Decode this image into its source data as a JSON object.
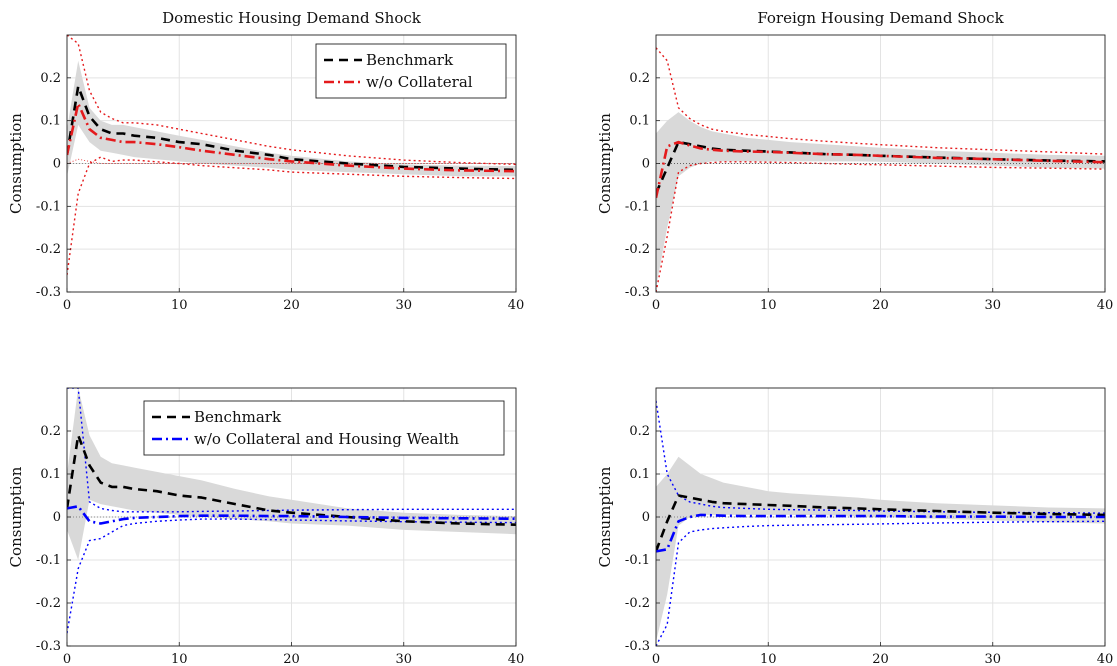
{
  "chart_data": [
    {
      "type": "line",
      "title": "Domestic Housing Demand Shock",
      "xlabel": "",
      "ylabel": "Consumption",
      "xlim": [
        0,
        40
      ],
      "ylim": [
        -0.3,
        0.3
      ],
      "xticks": [
        "0",
        "10",
        "20",
        "30",
        "40"
      ],
      "yticks": [
        "-0.3",
        "-0.2",
        "-0.1",
        "0",
        "0.1",
        "0.2"
      ],
      "grid": true,
      "legend_position": "top-right",
      "x": [
        0,
        1,
        2,
        3,
        4,
        5,
        6,
        8,
        10,
        12,
        15,
        18,
        20,
        25,
        30,
        35,
        40
      ],
      "band": {
        "upper": [
          0.08,
          0.24,
          0.13,
          0.1,
          0.09,
          0.09,
          0.085,
          0.075,
          0.065,
          0.055,
          0.04,
          0.025,
          0.018,
          0.005,
          -0.002,
          -0.005,
          -0.006
        ],
        "lower": [
          -0.03,
          0.09,
          0.05,
          0.03,
          0.025,
          0.02,
          0.015,
          0.01,
          0.005,
          0.0,
          -0.005,
          -0.01,
          -0.015,
          -0.02,
          -0.025,
          -0.03,
          -0.03
        ]
      },
      "series": [
        {
          "name": "Benchmark",
          "style": "dashed",
          "color": "#000000",
          "values": [
            0.02,
            0.18,
            0.11,
            0.08,
            0.07,
            0.07,
            0.065,
            0.06,
            0.05,
            0.045,
            0.03,
            0.02,
            0.01,
            0.0,
            -0.008,
            -0.012,
            -0.015
          ]
        },
        {
          "name": "w/o Collateral",
          "style": "dashdot",
          "color": "#e41a1c",
          "values": [
            0.02,
            0.14,
            0.08,
            0.06,
            0.055,
            0.05,
            0.05,
            0.045,
            0.038,
            0.03,
            0.02,
            0.01,
            0.005,
            -0.005,
            -0.012,
            -0.016,
            -0.018
          ]
        },
        {
          "name": "",
          "style": "dotted",
          "color": "#e41a1c",
          "values": [
            0.3,
            0.28,
            0.17,
            0.12,
            0.105,
            0.095,
            0.095,
            0.09,
            0.08,
            0.07,
            0.055,
            0.04,
            0.032,
            0.018,
            0.008,
            0.002,
            -0.002
          ]
        },
        {
          "name": "",
          "style": "dotted",
          "color": "#e41a1c",
          "values": [
            -0.26,
            -0.07,
            0.0,
            0.015,
            0.005,
            0.008,
            0.008,
            0.004,
            0.0,
            -0.005,
            -0.01,
            -0.015,
            -0.02,
            -0.025,
            -0.03,
            -0.033,
            -0.035
          ]
        },
        {
          "name": "",
          "style": "thin-dotted",
          "color": "#e41a1c",
          "values": [
            0.0,
            0.01,
            0.005,
            0.0,
            0.0,
            0.0,
            0.0,
            0.0,
            0.0,
            0.0,
            0.0,
            0.0,
            0.0,
            0.0,
            0.0,
            0.0,
            0.0
          ]
        }
      ],
      "legend": [
        "Benchmark",
        "w/o Collateral"
      ]
    },
    {
      "type": "line",
      "title": "Foreign Housing Demand Shock",
      "xlabel": "",
      "ylabel": "Consumption",
      "xlim": [
        0,
        40
      ],
      "ylim": [
        -0.3,
        0.3
      ],
      "xticks": [
        "0",
        "10",
        "20",
        "30",
        "40"
      ],
      "yticks": [
        "-0.3",
        "-0.2",
        "-0.1",
        "0",
        "0.1",
        "0.2"
      ],
      "grid": true,
      "legend_position": "none",
      "x": [
        0,
        1,
        2,
        3,
        4,
        5,
        6,
        8,
        10,
        12,
        15,
        18,
        20,
        25,
        30,
        35,
        40
      ],
      "band": {
        "upper": [
          0.07,
          0.1,
          0.12,
          0.1,
          0.085,
          0.075,
          0.07,
          0.06,
          0.055,
          0.05,
          0.045,
          0.04,
          0.037,
          0.03,
          0.025,
          0.02,
          0.018
        ],
        "lower": [
          -0.29,
          -0.15,
          -0.03,
          -0.01,
          0.0,
          0.005,
          0.005,
          0.005,
          0.005,
          0.005,
          0.005,
          0.005,
          0.004,
          0.0,
          -0.005,
          -0.01,
          -0.012
        ]
      },
      "series": [
        {
          "name": "Benchmark",
          "style": "dashed",
          "color": "#000000",
          "values": [
            -0.07,
            -0.01,
            0.05,
            0.045,
            0.04,
            0.035,
            0.032,
            0.03,
            0.028,
            0.026,
            0.022,
            0.02,
            0.018,
            0.014,
            0.01,
            0.007,
            0.005
          ]
        },
        {
          "name": "w/o Collateral",
          "style": "dashdot",
          "color": "#e41a1c",
          "values": [
            -0.08,
            0.04,
            0.05,
            0.042,
            0.035,
            0.032,
            0.03,
            0.028,
            0.027,
            0.025,
            0.022,
            0.02,
            0.018,
            0.013,
            0.01,
            0.006,
            0.003
          ]
        },
        {
          "name": "",
          "style": "dotted",
          "color": "#e41a1c",
          "values": [
            0.27,
            0.24,
            0.13,
            0.105,
            0.09,
            0.08,
            0.075,
            0.068,
            0.063,
            0.058,
            0.052,
            0.047,
            0.044,
            0.037,
            0.032,
            0.027,
            0.022
          ]
        },
        {
          "name": "",
          "style": "dotted",
          "color": "#e41a1c",
          "values": [
            -0.3,
            -0.17,
            -0.02,
            -0.005,
            0.0,
            0.002,
            0.004,
            0.004,
            0.003,
            0.002,
            0.0,
            -0.002,
            -0.003,
            -0.006,
            -0.009,
            -0.011,
            -0.013
          ]
        },
        {
          "name": "",
          "style": "thin-dotted",
          "color": "#555555",
          "values": [
            0,
            0,
            0,
            0,
            0,
            0,
            0,
            0,
            0,
            0,
            0,
            0,
            0,
            0,
            0,
            0,
            0
          ]
        }
      ],
      "legend": []
    },
    {
      "type": "line",
      "title": "",
      "xlabel": "",
      "ylabel": "Consumption",
      "xlim": [
        0,
        40
      ],
      "ylim": [
        -0.3,
        0.3
      ],
      "xticks": [
        "0",
        "10",
        "20",
        "30",
        "40"
      ],
      "yticks": [
        "-0.3",
        "-0.2",
        "-0.1",
        "0",
        "0.1",
        "0.2"
      ],
      "grid": true,
      "legend_position": "top-center",
      "x": [
        0,
        1,
        2,
        3,
        4,
        5,
        6,
        8,
        10,
        12,
        15,
        18,
        20,
        25,
        30,
        35,
        40
      ],
      "band": {
        "upper": [
          0.1,
          0.3,
          0.19,
          0.14,
          0.125,
          0.12,
          0.115,
          0.105,
          0.095,
          0.085,
          0.065,
          0.048,
          0.04,
          0.02,
          0.01,
          0.005,
          0.002
        ],
        "lower": [
          -0.03,
          -0.1,
          0.04,
          0.03,
          0.025,
          0.02,
          0.015,
          0.01,
          0.005,
          0.0,
          -0.005,
          -0.01,
          -0.015,
          -0.02,
          -0.03,
          -0.035,
          -0.04
        ]
      },
      "series": [
        {
          "name": "Benchmark",
          "style": "dashed",
          "color": "#000000",
          "values": [
            0.02,
            0.19,
            0.12,
            0.08,
            0.07,
            0.07,
            0.065,
            0.06,
            0.05,
            0.045,
            0.03,
            0.015,
            0.01,
            0.0,
            -0.01,
            -0.015,
            -0.018
          ]
        },
        {
          "name": "w/o Collateral and Housing Wealth",
          "style": "dashdot",
          "color": "#0000ff",
          "values": [
            0.02,
            0.025,
            -0.01,
            -0.015,
            -0.01,
            -0.005,
            -0.002,
            0.0,
            0.002,
            0.003,
            0.003,
            0.002,
            0.002,
            0.0,
            -0.002,
            -0.003,
            -0.004
          ]
        },
        {
          "name": "",
          "style": "dotted",
          "color": "#0000ff",
          "values": [
            0.3,
            0.3,
            0.035,
            0.02,
            0.015,
            0.012,
            0.012,
            0.012,
            0.012,
            0.013,
            0.014,
            0.015,
            0.016,
            0.017,
            0.018,
            0.018,
            0.018
          ]
        },
        {
          "name": "",
          "style": "dotted",
          "color": "#0000ff",
          "values": [
            -0.27,
            -0.12,
            -0.055,
            -0.05,
            -0.035,
            -0.02,
            -0.015,
            -0.01,
            -0.007,
            -0.005,
            -0.005,
            -0.006,
            -0.007,
            -0.009,
            -0.011,
            -0.012,
            -0.013
          ]
        }
      ],
      "legend": [
        "Benchmark",
        "w/o Collateral and Housing Wealth"
      ]
    },
    {
      "type": "line",
      "title": "",
      "xlabel": "",
      "ylabel": "Consumption",
      "xlim": [
        0,
        40
      ],
      "ylim": [
        -0.3,
        0.3
      ],
      "xticks": [
        "0",
        "10",
        "20",
        "30",
        "40"
      ],
      "yticks": [
        "-0.3",
        "-0.2",
        "-0.1",
        "0",
        "0.1",
        "0.2"
      ],
      "grid": true,
      "legend_position": "none",
      "x": [
        0,
        1,
        2,
        3,
        4,
        5,
        6,
        8,
        10,
        12,
        15,
        18,
        20,
        25,
        30,
        35,
        40
      ],
      "band": {
        "upper": [
          0.07,
          0.1,
          0.14,
          0.12,
          0.1,
          0.09,
          0.08,
          0.07,
          0.06,
          0.055,
          0.05,
          0.045,
          0.04,
          0.032,
          0.027,
          0.022,
          0.02
        ],
        "lower": [
          -0.29,
          -0.18,
          -0.02,
          0.0,
          0.005,
          0.005,
          0.005,
          0.005,
          0.005,
          0.005,
          0.004,
          0.002,
          0.0,
          -0.004,
          -0.008,
          -0.012,
          -0.015
        ]
      },
      "series": [
        {
          "name": "Benchmark",
          "style": "dashed",
          "color": "#000000",
          "values": [
            -0.08,
            -0.01,
            0.05,
            0.045,
            0.04,
            0.035,
            0.032,
            0.03,
            0.028,
            0.026,
            0.022,
            0.02,
            0.018,
            0.014,
            0.01,
            0.007,
            0.005
          ]
        },
        {
          "name": "w/o Collateral and Housing Wealth",
          "style": "dashdot",
          "color": "#0000ff",
          "values": [
            -0.08,
            -0.075,
            -0.01,
            0.0,
            0.005,
            0.004,
            0.003,
            0.002,
            0.002,
            0.002,
            0.002,
            0.002,
            0.002,
            0.001,
            0.001,
            0.0,
            0.0
          ]
        },
        {
          "name": "",
          "style": "dotted",
          "color": "#0000ff",
          "values": [
            0.27,
            0.1,
            0.05,
            0.035,
            0.03,
            0.025,
            0.022,
            0.02,
            0.018,
            0.017,
            0.016,
            0.015,
            0.014,
            0.012,
            0.011,
            0.01,
            0.009
          ]
        },
        {
          "name": "",
          "style": "dotted",
          "color": "#0000ff",
          "values": [
            -0.3,
            -0.25,
            -0.06,
            -0.035,
            -0.03,
            -0.027,
            -0.025,
            -0.022,
            -0.02,
            -0.019,
            -0.018,
            -0.017,
            -0.016,
            -0.014,
            -0.012,
            -0.011,
            -0.01
          ]
        }
      ],
      "legend": []
    }
  ]
}
